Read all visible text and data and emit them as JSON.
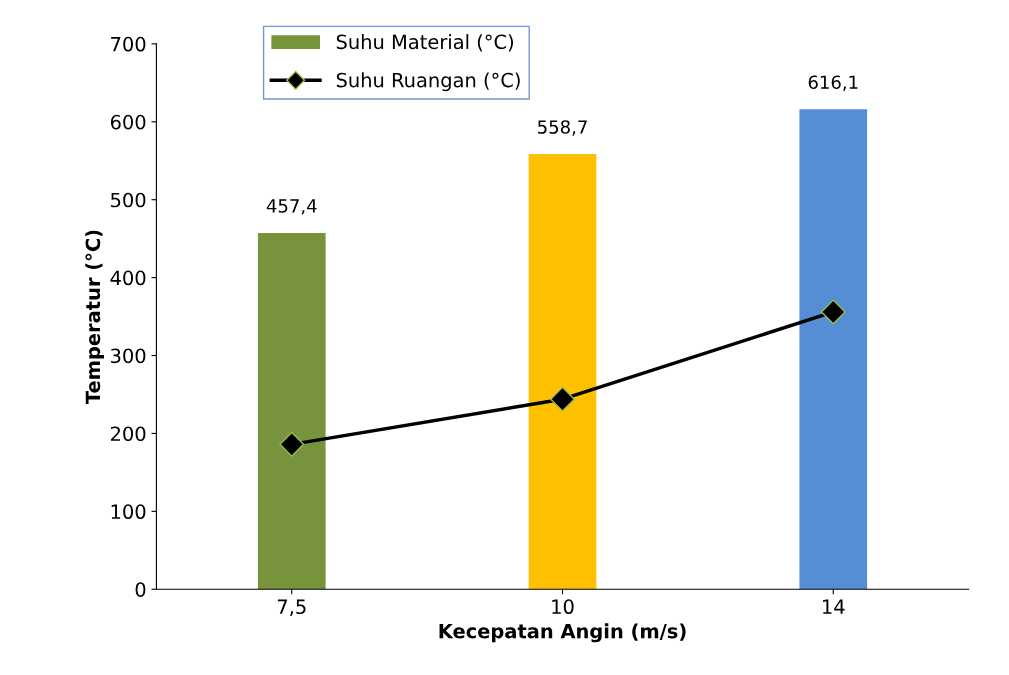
{
  "chart_data": {
    "type": "bar",
    "xlabel": "Kecepatan Angin (m/s)",
    "ylabel": "Temperatur (°C)",
    "categories": [
      "7,5",
      "10",
      "14"
    ],
    "series": [
      {
        "name": "Suhu Material (°C)",
        "color": "#77933c",
        "colors": [
          "#77933c",
          "#ffc000",
          "#558ed5"
        ],
        "values": [
          457.4,
          558.7,
          616.1
        ],
        "value_labels": [
          "457,4",
          "558,7",
          "616,1"
        ]
      },
      {
        "name": "Suhu Ruangan (°C)",
        "type": "line",
        "color": "#000000",
        "marker": "diamond",
        "line_style": "solid",
        "values": [
          186,
          244,
          356
        ]
      }
    ],
    "ylim": [
      0,
      700
    ],
    "yticks": [
      0,
      100,
      200,
      300,
      400,
      500,
      600,
      700
    ],
    "grid": false,
    "legend": "top left"
  }
}
